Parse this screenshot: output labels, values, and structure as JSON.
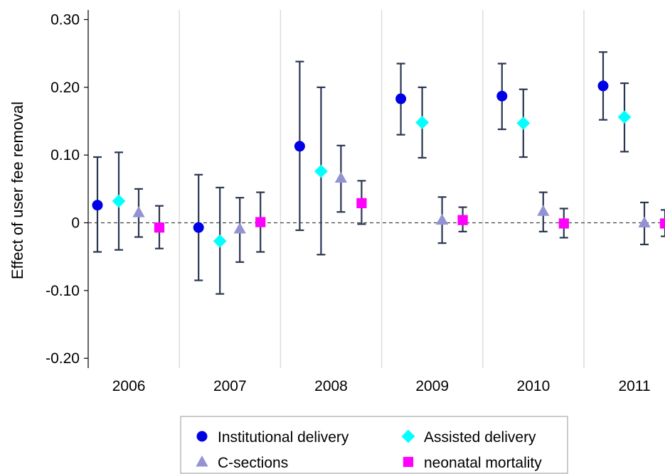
{
  "chart_data": {
    "type": "scatter",
    "title": "",
    "xlabel": "",
    "ylabel": "Effect of user fee removal",
    "categories": [
      "2006",
      "2007",
      "2008",
      "2009",
      "2010",
      "2011"
    ],
    "ylim": [
      -0.22,
      0.32
    ],
    "yticks": [
      {
        "value": 0.3,
        "label": "0.30"
      },
      {
        "value": 0.2,
        "label": "0.20"
      },
      {
        "value": 0.1,
        "label": "0.10"
      },
      {
        "value": 0,
        "label": "0"
      },
      {
        "value": -0.1,
        "label": "-0.10"
      },
      {
        "value": -0.2,
        "label": "-0.20"
      }
    ],
    "reference_line": 0,
    "grid": "vertical separators between years",
    "legend_position": "bottom",
    "series": [
      {
        "name": "Institutional delivery",
        "marker": "circle",
        "color": "#0000e6",
        "points": [
          {
            "category": "2006",
            "estimate": 0.026,
            "lower": -0.043,
            "upper": 0.097
          },
          {
            "category": "2007",
            "estimate": -0.007,
            "lower": -0.085,
            "upper": 0.071
          },
          {
            "category": "2008",
            "estimate": 0.113,
            "lower": -0.011,
            "upper": 0.238
          },
          {
            "category": "2009",
            "estimate": 0.183,
            "lower": 0.13,
            "upper": 0.235
          },
          {
            "category": "2010",
            "estimate": 0.187,
            "lower": 0.138,
            "upper": 0.235
          },
          {
            "category": "2011",
            "estimate": 0.202,
            "lower": 0.152,
            "upper": 0.252
          }
        ]
      },
      {
        "name": "Assisted delivery",
        "marker": "diamond",
        "color": "#00ffff",
        "points": [
          {
            "category": "2006",
            "estimate": 0.032,
            "lower": -0.04,
            "upper": 0.104
          },
          {
            "category": "2007",
            "estimate": -0.027,
            "lower": -0.105,
            "upper": 0.052
          },
          {
            "category": "2008",
            "estimate": 0.076,
            "lower": -0.047,
            "upper": 0.2
          },
          {
            "category": "2009",
            "estimate": 0.148,
            "lower": 0.096,
            "upper": 0.2
          },
          {
            "category": "2010",
            "estimate": 0.147,
            "lower": 0.097,
            "upper": 0.197
          },
          {
            "category": "2011",
            "estimate": 0.156,
            "lower": 0.105,
            "upper": 0.206
          }
        ]
      },
      {
        "name": "C-sections",
        "marker": "triangle",
        "color": "#9393d3",
        "points": [
          {
            "category": "2006",
            "estimate": 0.015,
            "lower": -0.021,
            "upper": 0.05
          },
          {
            "category": "2007",
            "estimate": -0.009,
            "lower": -0.058,
            "upper": 0.037
          },
          {
            "category": "2008",
            "estimate": 0.066,
            "lower": 0.016,
            "upper": 0.114
          },
          {
            "category": "2009",
            "estimate": 0.004,
            "lower": -0.03,
            "upper": 0.038
          },
          {
            "category": "2010",
            "estimate": 0.017,
            "lower": -0.013,
            "upper": 0.045
          },
          {
            "category": "2011",
            "estimate": 0.0,
            "lower": -0.032,
            "upper": 0.03
          }
        ]
      },
      {
        "name": "neonatal mortality",
        "marker": "square",
        "color": "#ff00ff",
        "points": [
          {
            "category": "2006",
            "estimate": -0.007,
            "lower": -0.038,
            "upper": 0.025
          },
          {
            "category": "2007",
            "estimate": 0.001,
            "lower": -0.043,
            "upper": 0.045
          },
          {
            "category": "2008",
            "estimate": 0.029,
            "lower": -0.002,
            "upper": 0.062
          },
          {
            "category": "2009",
            "estimate": 0.004,
            "lower": -0.013,
            "upper": 0.023
          },
          {
            "category": "2010",
            "estimate": -0.001,
            "lower": -0.022,
            "upper": 0.021
          },
          {
            "category": "2011",
            "estimate": -0.001,
            "lower": -0.02,
            "upper": 0.019
          }
        ]
      }
    ],
    "error_bar_color": "#2a3550"
  }
}
